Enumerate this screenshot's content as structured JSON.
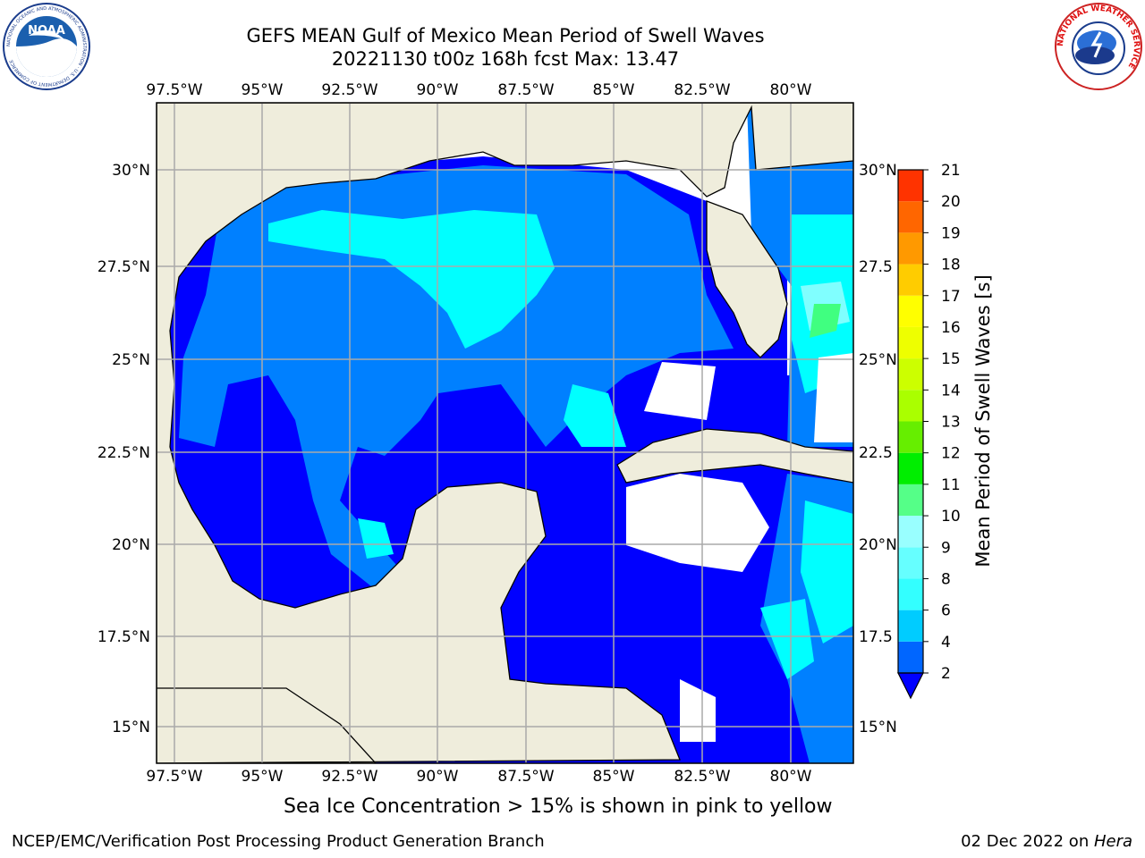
{
  "header": {
    "title_line1": "GEFS MEAN Gulf of Mexico Mean Period of Swell Waves",
    "title_line2": "20221130 t00z 168h fcst   Max: 13.47"
  },
  "map": {
    "lon_labels": [
      "97.5°W",
      "95°W",
      "92.5°W",
      "90°W",
      "87.5°W",
      "85°W",
      "82.5°W",
      "80°W"
    ],
    "lat_labels_left": [
      "30°N",
      "27.5°N",
      "25°N",
      "22.5°N",
      "20°N",
      "17.5°N",
      "15°N"
    ],
    "lat_labels_right": [
      "30°N",
      "27.5",
      "25°N",
      "22.5",
      "20°N",
      "17.5",
      "15°N"
    ],
    "land_color": "#efeddc",
    "ocean_fill_colors": [
      "#0000ff",
      "#0080ff",
      "#00ffff",
      "#80ffff",
      "#40ff80",
      "#00e000",
      "#80ff00",
      "#c0ff00"
    ]
  },
  "colorbar": {
    "label": "Mean Period of Swell Waves [s]",
    "ticks": [
      "2",
      "4",
      "6",
      "8",
      "9",
      "10",
      "11",
      "12",
      "13",
      "14",
      "15",
      "16",
      "17",
      "18",
      "19",
      "20",
      "21"
    ],
    "colors": [
      "#0066ff",
      "#00ccff",
      "#33ffff",
      "#66ffff",
      "#99ffff",
      "#55ff88",
      "#00ee00",
      "#66ee00",
      "#aaff00",
      "#ccff00",
      "#eeff00",
      "#ffff00",
      "#ffcc00",
      "#ff9900",
      "#ff6600",
      "#ff3300"
    ],
    "extend_color": "#0000ff"
  },
  "footer": {
    "note": "Sea Ice Concentration > 15% is shown in pink to yellow",
    "credit": "NCEP/EMC/Verification Post Processing Product Generation Branch",
    "date": "02 Dec 2022 on ",
    "machine": "Hera"
  },
  "logos": {
    "noaa_text": "NOAA",
    "noaa_ring": "NATIONAL OCEANIC AND ATMOSPHERIC ADMINISTRATION · U.S. DEPARTMENT OF COMMERCE",
    "nws_ring": "NATIONAL WEATHER SERVICE"
  }
}
